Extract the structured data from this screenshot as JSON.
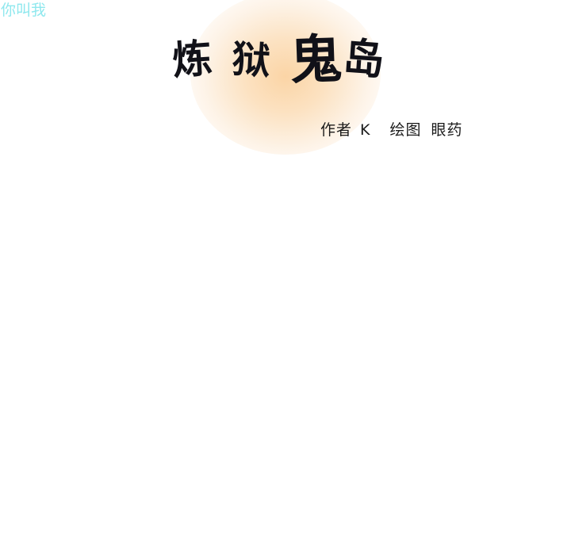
{
  "watermark": {
    "text": "你叫我"
  },
  "cover": {
    "title": "炼狱鬼岛",
    "title_chars": [
      "炼",
      "狱",
      "鬼",
      "岛"
    ],
    "author_label": "作者",
    "author_name": "K",
    "artist_label": "绘图",
    "artist_name": "眼药"
  },
  "colors": {
    "background": "#ffffff",
    "watermark": "#8fe8ee",
    "title_ink": "#111118",
    "glow": "#facd96"
  }
}
